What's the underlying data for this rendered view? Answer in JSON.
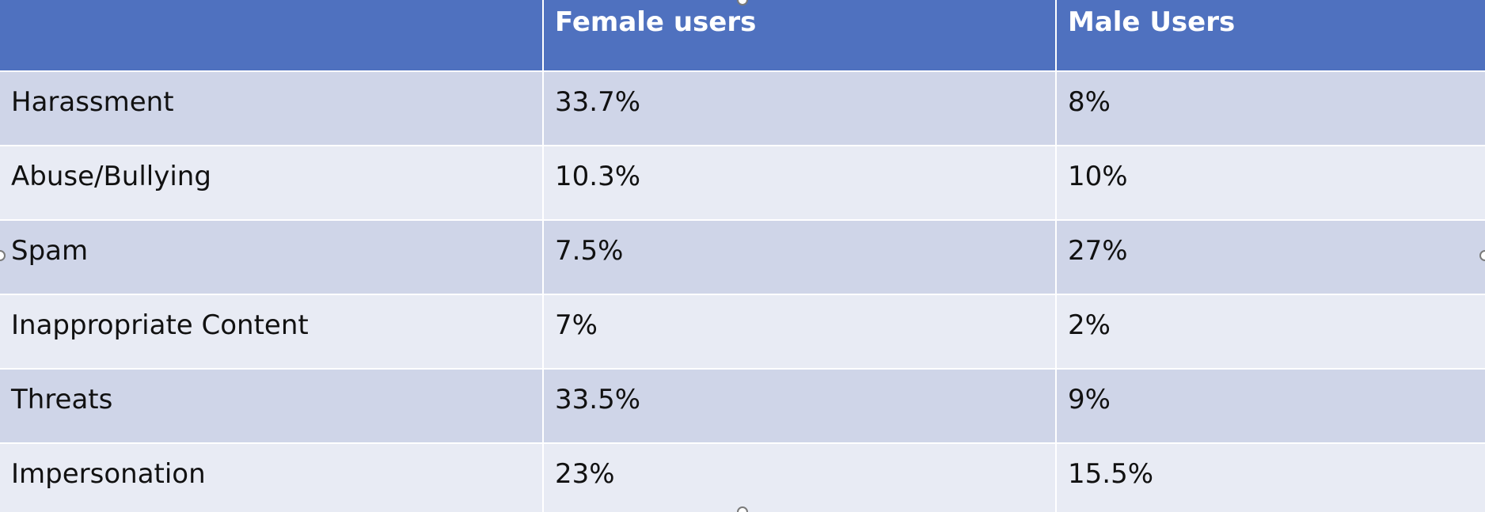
{
  "table": {
    "headers": [
      "",
      "Female users",
      "Male Users"
    ],
    "rows": [
      {
        "category": "Harassment",
        "female": "33.7%",
        "male": "8%"
      },
      {
        "category": "Abuse/Bullying",
        "female": "10.3%",
        "male": "10%"
      },
      {
        "category": "Spam",
        "female": "7.5%",
        "male": "27%"
      },
      {
        "category": "Inappropriate Content",
        "female": "7%",
        "male": "2%"
      },
      {
        "category": "Threats",
        "female": "33.5%",
        "male": "9%"
      },
      {
        "category": "Impersonation",
        "female": "23%",
        "male": "15.5%"
      }
    ]
  },
  "colors": {
    "header_bg": "#4f71bf",
    "row_dark": "#cfd5e8",
    "row_light": "#e8ebf4",
    "border": "#ffffff"
  }
}
